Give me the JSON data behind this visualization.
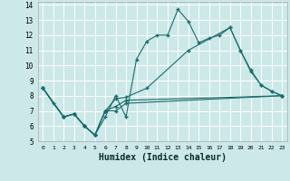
{
  "xlabel": "Humidex (Indice chaleur)",
  "xlim": [
    -0.5,
    23.5
  ],
  "ylim": [
    5,
    14.2
  ],
  "xticks": [
    0,
    1,
    2,
    3,
    4,
    5,
    6,
    7,
    8,
    9,
    10,
    11,
    12,
    13,
    14,
    15,
    16,
    17,
    18,
    19,
    20,
    21,
    22,
    23
  ],
  "yticks": [
    5,
    6,
    7,
    8,
    9,
    10,
    11,
    12,
    13,
    14
  ],
  "bg_color": "#cce8e8",
  "grid_color": "#ffffff",
  "line_color": "#1a6b6b",
  "series": [
    {
      "x": [
        0,
        1,
        2,
        3,
        4,
        5,
        6,
        7,
        8,
        9,
        10,
        11,
        12,
        13,
        14,
        15,
        16,
        17,
        18,
        19,
        20,
        21,
        22,
        23
      ],
      "y": [
        8.5,
        7.5,
        6.6,
        6.8,
        6.0,
        5.4,
        6.6,
        8.0,
        6.6,
        10.4,
        11.6,
        12.0,
        12.0,
        13.7,
        12.9,
        11.5,
        11.8,
        12.0,
        12.5,
        11.0,
        9.7,
        8.7,
        8.3,
        8.0
      ]
    },
    {
      "x": [
        0,
        2,
        3,
        4,
        5,
        6,
        7,
        8,
        10,
        14,
        18,
        19,
        20,
        21,
        22,
        23
      ],
      "y": [
        8.5,
        6.6,
        6.8,
        6.0,
        5.4,
        7.0,
        7.8,
        7.9,
        8.5,
        11.0,
        12.5,
        11.0,
        9.6,
        8.7,
        8.3,
        8.0
      ]
    },
    {
      "x": [
        0,
        2,
        3,
        4,
        5,
        6,
        7,
        8,
        23
      ],
      "y": [
        8.5,
        6.6,
        6.8,
        6.0,
        5.4,
        7.0,
        7.3,
        7.7,
        8.0
      ]
    },
    {
      "x": [
        0,
        2,
        3,
        4,
        5,
        6,
        7,
        8,
        23
      ],
      "y": [
        8.5,
        6.6,
        6.8,
        6.0,
        5.4,
        7.0,
        7.0,
        7.5,
        8.0
      ]
    }
  ]
}
